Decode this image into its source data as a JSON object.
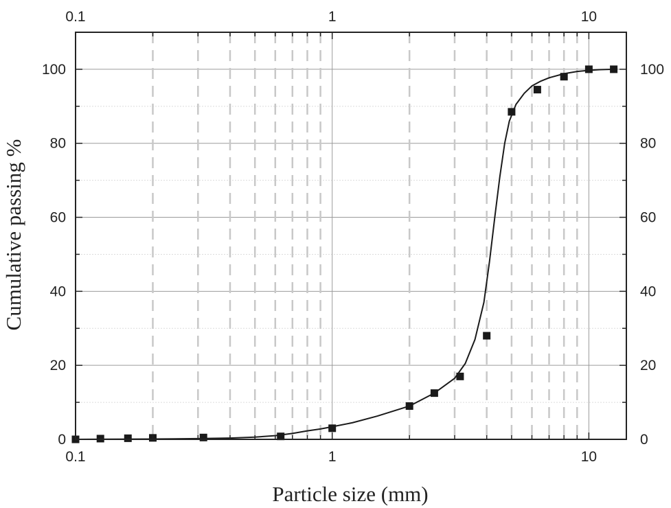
{
  "chart_data": {
    "type": "scatter",
    "title": "",
    "xlabel": "Particle size (mm)",
    "ylabel": "Cumulative passing %",
    "xscale": "log",
    "xlim": [
      0.1,
      14
    ],
    "ylim": [
      0,
      110
    ],
    "x_tick_labels": [
      "0.1",
      "1",
      "10"
    ],
    "x_tick_values": [
      0.1,
      1,
      10
    ],
    "y_tick_labels": [
      "0",
      "20",
      "40",
      "60",
      "80",
      "100"
    ],
    "y_tick_values": [
      0,
      20,
      40,
      60,
      80,
      100
    ],
    "grid": true,
    "series": [
      {
        "kind": "points",
        "marker": "square",
        "x": [
          0.1,
          0.125,
          0.16,
          0.2,
          0.315,
          0.63,
          1.0,
          2.0,
          2.5,
          3.15,
          4.0,
          5.0,
          6.3,
          8.0,
          10.0,
          12.5
        ],
        "y": [
          0,
          0.2,
          0.3,
          0.4,
          0.5,
          0.8,
          3,
          9,
          12.5,
          17,
          28,
          88.5,
          94.5,
          98,
          100,
          100
        ]
      },
      {
        "kind": "curve",
        "x": [
          0.1,
          0.2,
          0.3,
          0.4,
          0.5,
          0.6,
          0.7,
          0.8,
          0.9,
          1.0,
          1.2,
          1.5,
          2.0,
          2.5,
          3.0,
          3.3,
          3.6,
          3.9,
          4.1,
          4.3,
          4.5,
          4.7,
          4.9,
          5.2,
          5.6,
          6.0,
          6.5,
          7.0,
          8.0,
          9.0,
          10.0,
          11.0,
          12.5
        ],
        "y": [
          0,
          0.1,
          0.2,
          0.35,
          0.6,
          1.0,
          1.6,
          2.3,
          2.8,
          3.4,
          4.5,
          6.3,
          9.0,
          12.5,
          16.5,
          20.5,
          27,
          37,
          48,
          60,
          71,
          80,
          86,
          90.5,
          93.5,
          95.5,
          96.8,
          97.7,
          98.8,
          99.4,
          99.7,
          99.9,
          100
        ]
      }
    ],
    "colors": {
      "marker": "#1a1a1a",
      "curve": "#1a1a1a",
      "frame": "#222222",
      "major_grid": "#9a9a9a",
      "dashed_grid": "#c8c8c8",
      "minor_hgrid": "#dcdcdc"
    }
  }
}
